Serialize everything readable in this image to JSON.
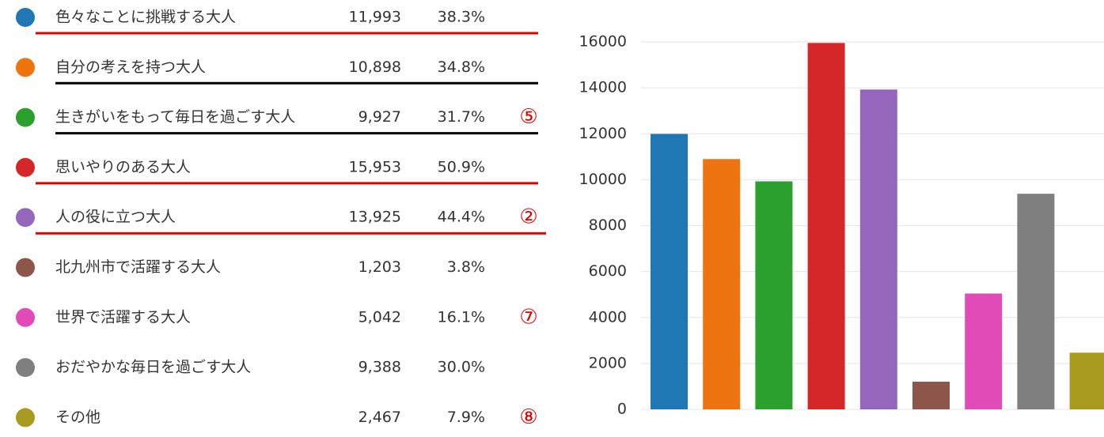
{
  "chart_data": {
    "type": "bar",
    "categories": [
      "色々なことに挑戦する大人",
      "自分の考えを持つ大人",
      "生きがいをもって毎日を過ごす大人",
      "思いやりのある大人",
      "人の役に立つ大人",
      "北九州市で活躍する大人",
      "世界で活躍する大人",
      "おだやかな毎日を過ごす大人",
      "その他"
    ],
    "values": [
      11993,
      10898,
      9927,
      15953,
      13925,
      1203,
      5042,
      9388,
      2467
    ],
    "value_labels": [
      "11,993",
      "10,898",
      "9,927",
      "15,953",
      "13,925",
      "1,203",
      "5,042",
      "9,388",
      "2,467"
    ],
    "percentages": [
      38.3,
      34.8,
      31.7,
      50.9,
      44.4,
      3.8,
      16.1,
      30.0,
      7.9
    ],
    "percentage_labels": [
      "38.3%",
      "34.8%",
      "31.7%",
      "50.9%",
      "44.4%",
      "3.8%",
      "16.1%",
      "30.0%",
      "7.9%"
    ],
    "colors": [
      "#1f77b4",
      "#ee7410",
      "#2ca02c",
      "#d62728",
      "#9467bd",
      "#8c564b",
      "#e04bb8",
      "#7f7f7f",
      "#a89a1e"
    ],
    "underline_colors": [
      "#e00000",
      "#000000",
      "#000000",
      "#e00000",
      "#e00000",
      null,
      null,
      null,
      null
    ],
    "annotations": [
      null,
      null,
      "⑤",
      null,
      "②",
      null,
      "⑦",
      null,
      "⑧"
    ],
    "ylim": [
      0,
      16000
    ],
    "yticks": [
      0,
      2000,
      4000,
      6000,
      8000,
      10000,
      12000,
      14000,
      16000
    ],
    "grid": true
  }
}
